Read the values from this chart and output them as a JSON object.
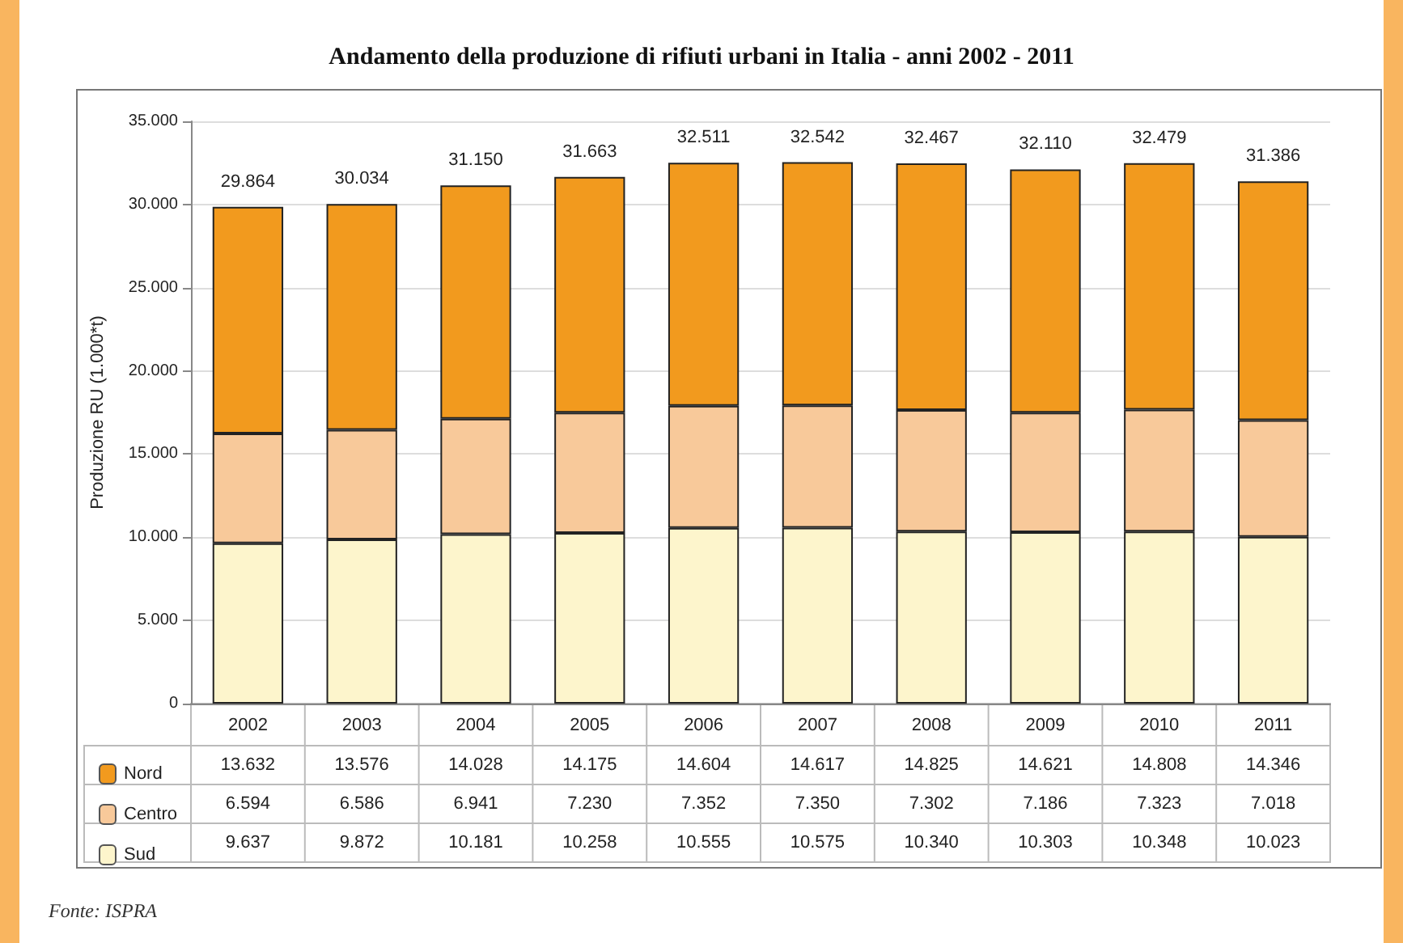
{
  "chart_data": {
    "type": "bar",
    "title": "Andamento della produzione di rifiuti urbani in Italia - anni 2002 - 2011",
    "ylabel": "Produzione RU (1.000*t)",
    "categories": [
      "2002",
      "2003",
      "2004",
      "2005",
      "2006",
      "2007",
      "2008",
      "2009",
      "2010",
      "2011"
    ],
    "stacked": true,
    "series": [
      {
        "name": "Sud",
        "color": "#fdf5cc",
        "values": [
          9637,
          9872,
          10181,
          10258,
          10555,
          10575,
          10340,
          10303,
          10348,
          10023
        ],
        "value_labels": [
          "9.637",
          "9.872",
          "10.181",
          "10.258",
          "10.555",
          "10.575",
          "10.340",
          "10.303",
          "10.348",
          "10.023"
        ]
      },
      {
        "name": "Centro",
        "color": "#f8c99a",
        "values": [
          6594,
          6586,
          6941,
          7230,
          7352,
          7350,
          7302,
          7186,
          7323,
          7018
        ],
        "value_labels": [
          "6.594",
          "6.586",
          "6.941",
          "7.230",
          "7.352",
          "7.350",
          "7.302",
          "7.186",
          "7.323",
          "7.018"
        ]
      },
      {
        "name": "Nord",
        "color": "#f29a1e",
        "values": [
          13632,
          13576,
          14028,
          14175,
          14604,
          14617,
          14825,
          14621,
          14808,
          14346
        ],
        "value_labels": [
          "13.632",
          "13.576",
          "14.028",
          "14.175",
          "14.604",
          "14.617",
          "14.825",
          "14.621",
          "14.808",
          "14.346"
        ]
      }
    ],
    "totals": [
      "29.864",
      "30.034",
      "31.150",
      "31.663",
      "32.511",
      "32.542",
      "32.467",
      "32.110",
      "32.479",
      "31.386"
    ],
    "ylim": [
      0,
      35000
    ],
    "yticks": [
      {
        "value": 0,
        "label": "0"
      },
      {
        "value": 5000,
        "label": "5.000"
      },
      {
        "value": 10000,
        "label": "10.000"
      },
      {
        "value": 15000,
        "label": "15.000"
      },
      {
        "value": 20000,
        "label": "20.000"
      },
      {
        "value": 25000,
        "label": "25.000"
      },
      {
        "value": 30000,
        "label": "30.000"
      },
      {
        "value": 35000,
        "label": "35.000"
      }
    ],
    "grid": "y",
    "legend": "bottom left",
    "annotations": [
      "Fonte: ISPRA"
    ]
  }
}
